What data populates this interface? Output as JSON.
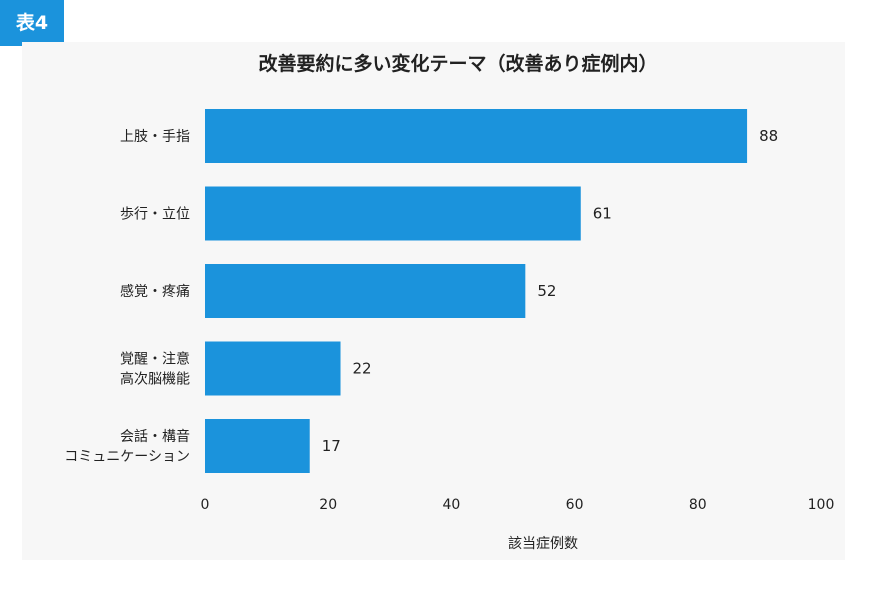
{
  "badge": "表4",
  "chart_data": {
    "type": "bar",
    "orientation": "horizontal",
    "title": "改善要約に多い変化テーマ（改善あり症例内）",
    "categories": [
      [
        "上肢・手指"
      ],
      [
        "歩行・立位"
      ],
      [
        "感覚・疼痛"
      ],
      [
        "覚醒・注意",
        "高次脳機能"
      ],
      [
        "会話・構音",
        "コミュニケーション"
      ]
    ],
    "values": [
      88,
      61,
      52,
      22,
      17
    ],
    "xlabel": "該当症例数",
    "ylabel": "",
    "xlim": [
      0,
      100
    ],
    "xticks": [
      0,
      20,
      40,
      60,
      80,
      100
    ],
    "grid": false,
    "bar_color": "#1b93dc"
  }
}
